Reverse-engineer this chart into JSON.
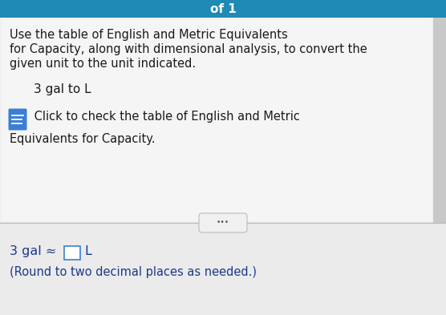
{
  "bg_color": "#c8c8c8",
  "top_bar_color": "#1e8ab5",
  "top_bar_text": "of 1",
  "top_bar_text_color": "#ffffff",
  "card_color": "#e8e8e8",
  "main_text_line1": "Use the table of English and Metric Equivalents",
  "main_text_line2": "for Capacity, along with dimensional analysis, to convert the",
  "main_text_line3": "given unit to the unit indicated.",
  "problem_text": "3 gal to L",
  "click_text_line1": " Click to check the table of English and Metric",
  "click_text_line2": "Equivalents for Capacity.",
  "icon_color": "#3a7fd5",
  "separator_color": "#bbbbbb",
  "dots_text": "•••",
  "answer_pre": "3 gal ≈ ",
  "answer_post": " L",
  "answer_note": "(Round to two decimal places as needed.)",
  "box_border_color": "#3a7fd5",
  "answer_text_color": "#1a3a8a",
  "text_color": "#1a1a1a",
  "note_color": "#1a3a8a",
  "font_size_main": 10.5,
  "font_size_problem": 11.0,
  "font_size_answer": 11.5,
  "fig_w": 5.56,
  "fig_h": 3.93,
  "dpi": 100
}
